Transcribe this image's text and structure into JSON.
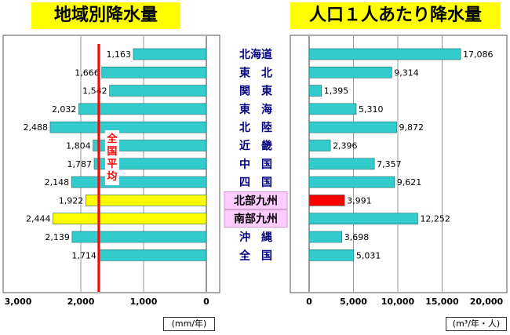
{
  "chart_data": [
    {
      "type": "bar",
      "orientation": "horizontal-reversed",
      "title": "地域別降水量",
      "unit": "(mm/年)",
      "xlim": [
        0,
        3000
      ],
      "ticks": [
        "3,000",
        "2,000",
        "1,000",
        "0"
      ],
      "grid": true,
      "values": [
        1163,
        1666,
        1542,
        2032,
        2488,
        1804,
        1787,
        2148,
        1922,
        2444,
        2139,
        1714
      ],
      "labels": [
        "1,163",
        "1,666",
        "1,542",
        "2,032",
        "2,488",
        "1,804",
        "1,787",
        "2,148",
        "1,922",
        "2,444",
        "2,139",
        "1,714"
      ],
      "highlight_color": "#ffff00",
      "highlight_indexes": [
        8,
        9
      ],
      "reference_line": {
        "label": "全国平均",
        "value": 1714,
        "color": "#ff0000"
      }
    },
    {
      "type": "bar",
      "orientation": "horizontal",
      "title": "人口１人あたり降水量",
      "unit": "(m³/年・人)",
      "xlim": [
        0,
        20000
      ],
      "ticks": [
        "0",
        "5,000",
        "10,000",
        "15,000",
        "20,000"
      ],
      "grid": true,
      "values": [
        17086,
        9314,
        1395,
        5310,
        9872,
        2396,
        7357,
        9621,
        3991,
        12252,
        3698,
        5031
      ],
      "labels": [
        "17,086",
        "9,314",
        "1,395",
        "5,310",
        "9,872",
        "2,396",
        "7,357",
        "9,621",
        "3,991",
        "12,252",
        "3,698",
        "5,031"
      ],
      "highlight_color": "#ff0000",
      "highlight_indexes": [
        8
      ]
    }
  ],
  "regions": [
    "北海道",
    "東北",
    "関東",
    "東海",
    "北陸",
    "近畿",
    "中国",
    "四国",
    "北部九州",
    "南部九州",
    "沖縄",
    "全国"
  ],
  "region_display": [
    "北海道",
    "東　北",
    "関　東",
    "東　海",
    "北　陸",
    "近　畿",
    "中　国",
    "四　国",
    "北部九州",
    "南部九州",
    "沖　縄",
    "全　国"
  ],
  "highlight_regions": [
    8,
    9
  ],
  "colors": {
    "bar": "#33cccc",
    "bar_stroke": "#1a6666",
    "highlight_left": "#ffff00",
    "highlight_right": "#ff0000",
    "reference": "#ff0000",
    "region_text": "#000080",
    "region_highlight_bg": "#ffccff",
    "panel_border": "#555555"
  }
}
